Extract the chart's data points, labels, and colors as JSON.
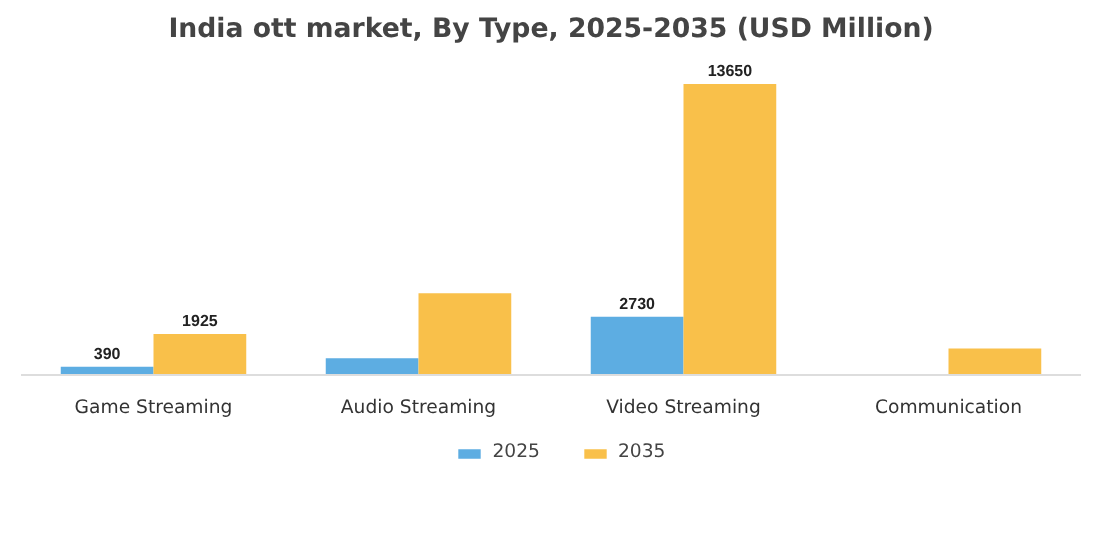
{
  "chart_data": {
    "type": "bar",
    "title": "India ott market, By Type, 2025-2035 (USD Million)",
    "categories": [
      "Game Streaming",
      "Audio Streaming",
      "Video Streaming",
      "Communication"
    ],
    "series": [
      {
        "name": "2025",
        "color": "#5dade2",
        "values": [
          390,
          790,
          2730,
          null
        ],
        "value_labels": [
          "390",
          null,
          "2730",
          null
        ]
      },
      {
        "name": "2035",
        "color": "#f9c04a",
        "values": [
          1925,
          3840,
          13650,
          1240
        ],
        "value_labels": [
          "1925",
          null,
          "13650",
          null
        ]
      }
    ],
    "legend": "bottom"
  }
}
